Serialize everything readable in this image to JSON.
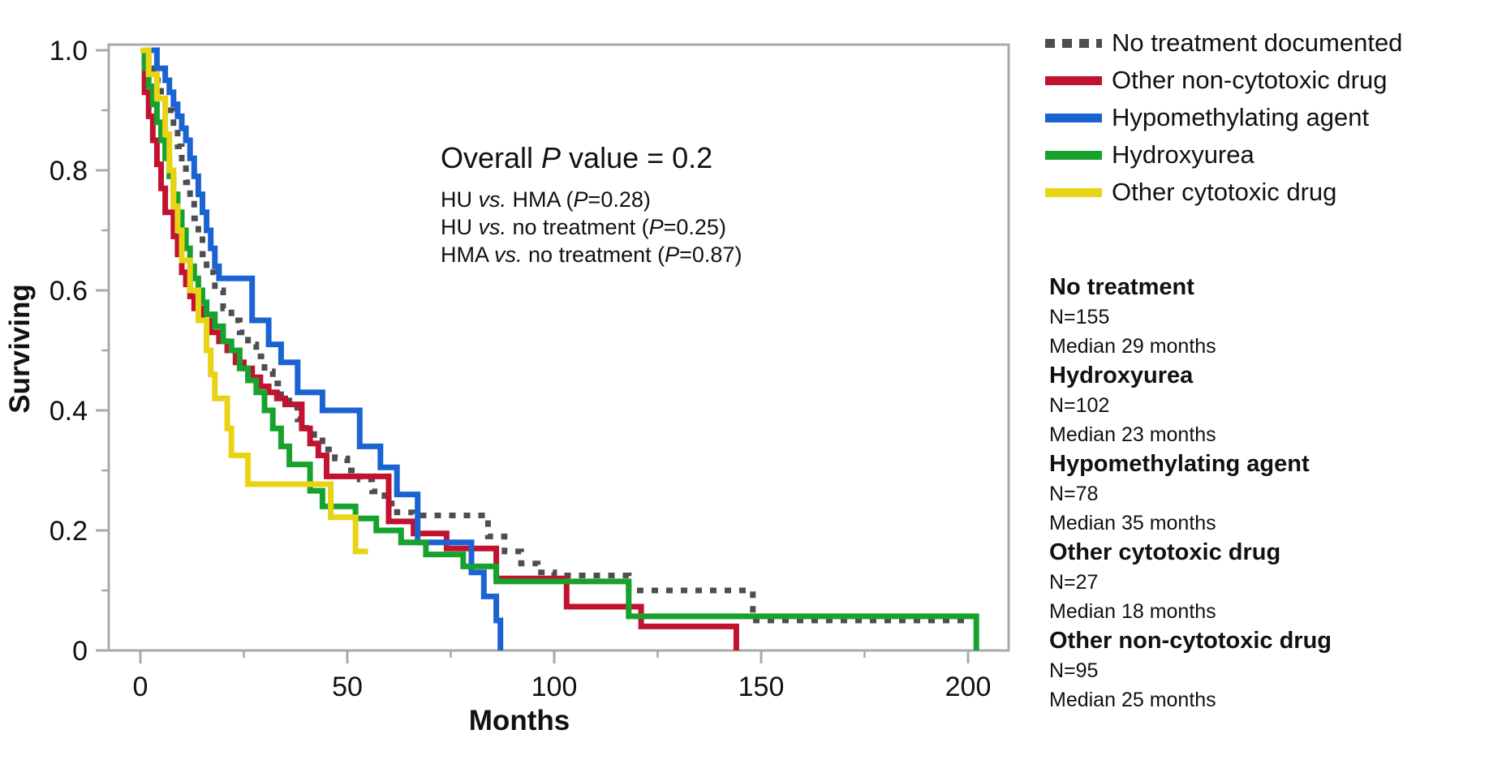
{
  "chart_data": {
    "type": "line",
    "subtype": "kaplan-meier-step",
    "xlabel": "Months",
    "ylabel": "Surviving",
    "x_axis": {
      "major_ticks": [
        0,
        50,
        100,
        150,
        200
      ],
      "major_labels": [
        "0",
        "50",
        "100",
        "150",
        "200"
      ],
      "minor_ticks": [
        25,
        75,
        125,
        175
      ],
      "range": [
        0,
        210
      ]
    },
    "y_axis": {
      "major_ticks": [
        0,
        0.2,
        0.4,
        0.6,
        0.8,
        1.0
      ],
      "major_labels": [
        "0",
        "0.2",
        "0.4",
        "0.6",
        "0.8",
        "1.0"
      ],
      "minor_ticks": [
        0.1,
        0.3,
        0.5,
        0.7,
        0.9
      ],
      "range": [
        0,
        1.0
      ]
    },
    "annotation": {
      "title_parts": [
        {
          "t": "Overall ",
          "i": false
        },
        {
          "t": "P",
          "i": true
        },
        {
          "t": " value = 0.2",
          "i": false
        }
      ],
      "lines": [
        [
          {
            "t": "HU ",
            "i": false
          },
          {
            "t": "vs.",
            "i": true
          },
          {
            "t": " HMA (",
            "i": false
          },
          {
            "t": "P",
            "i": true
          },
          {
            "t": "=0.28)",
            "i": false
          }
        ],
        [
          {
            "t": "HU ",
            "i": false
          },
          {
            "t": "vs.",
            "i": true
          },
          {
            "t": " no treatment (",
            "i": false
          },
          {
            "t": "P",
            "i": true
          },
          {
            "t": "=0.25)",
            "i": false
          }
        ],
        [
          {
            "t": "HMA ",
            "i": false
          },
          {
            "t": "vs.",
            "i": true
          },
          {
            "t": " no treatment (",
            "i": false
          },
          {
            "t": "P",
            "i": true
          },
          {
            "t": "=0.87)",
            "i": false
          }
        ]
      ]
    },
    "series": [
      {
        "name": "No treatment documented",
        "color": "#4e4e50",
        "dashed": true,
        "points": [
          [
            0,
            1.0
          ],
          [
            2,
            0.97
          ],
          [
            3,
            0.95
          ],
          [
            5,
            0.92
          ],
          [
            6,
            0.9
          ],
          [
            8,
            0.87
          ],
          [
            9,
            0.84
          ],
          [
            10,
            0.81
          ],
          [
            11,
            0.78
          ],
          [
            12,
            0.75
          ],
          [
            13,
            0.72
          ],
          [
            14,
            0.69
          ],
          [
            15,
            0.66
          ],
          [
            16,
            0.63
          ],
          [
            18,
            0.6
          ],
          [
            20,
            0.57
          ],
          [
            22,
            0.55
          ],
          [
            24,
            0.53
          ],
          [
            26,
            0.51
          ],
          [
            28,
            0.49
          ],
          [
            30,
            0.465
          ],
          [
            32,
            0.445
          ],
          [
            34,
            0.425
          ],
          [
            36,
            0.405
          ],
          [
            38,
            0.385
          ],
          [
            40,
            0.37
          ],
          [
            42,
            0.35
          ],
          [
            44,
            0.335
          ],
          [
            47,
            0.32
          ],
          [
            50,
            0.3
          ],
          [
            53,
            0.285
          ],
          [
            56,
            0.265
          ],
          [
            59,
            0.245
          ],
          [
            62,
            0.23
          ],
          [
            66,
            0.225
          ],
          [
            84,
            0.19
          ],
          [
            88,
            0.165
          ],
          [
            92,
            0.145
          ],
          [
            96,
            0.13
          ],
          [
            100,
            0.125
          ],
          [
            118,
            0.1
          ],
          [
            148,
            0.05
          ],
          [
            201,
            0.05
          ]
        ]
      },
      {
        "name": "Other non-cytotoxic drug",
        "color": "#c1122f",
        "dashed": false,
        "points": [
          [
            0,
            1.0
          ],
          [
            1,
            0.93
          ],
          [
            2,
            0.89
          ],
          [
            3,
            0.85
          ],
          [
            4,
            0.81
          ],
          [
            5,
            0.77
          ],
          [
            6,
            0.73
          ],
          [
            8,
            0.69
          ],
          [
            9,
            0.66
          ],
          [
            10,
            0.63
          ],
          [
            11,
            0.61
          ],
          [
            12,
            0.59
          ],
          [
            13,
            0.57
          ],
          [
            15,
            0.55
          ],
          [
            17,
            0.53
          ],
          [
            19,
            0.515
          ],
          [
            21,
            0.5
          ],
          [
            23,
            0.48
          ],
          [
            25,
            0.47
          ],
          [
            27,
            0.455
          ],
          [
            29,
            0.44
          ],
          [
            31,
            0.43
          ],
          [
            33,
            0.42
          ],
          [
            35,
            0.41
          ],
          [
            39,
            0.37
          ],
          [
            41,
            0.345
          ],
          [
            43,
            0.325
          ],
          [
            45,
            0.29
          ],
          [
            60,
            0.215
          ],
          [
            66,
            0.195
          ],
          [
            74,
            0.17
          ],
          [
            86,
            0.12
          ],
          [
            103,
            0.073
          ],
          [
            121,
            0.04
          ],
          [
            143,
            0.04
          ],
          [
            144,
            0
          ]
        ]
      },
      {
        "name": "Hypomethylating agent",
        "color": "#1c63d2",
        "dashed": false,
        "points": [
          [
            0,
            1.0
          ],
          [
            4,
            0.97
          ],
          [
            6,
            0.95
          ],
          [
            7,
            0.93
          ],
          [
            8,
            0.91
          ],
          [
            9,
            0.89
          ],
          [
            10,
            0.87
          ],
          [
            11,
            0.85
          ],
          [
            12,
            0.82
          ],
          [
            13,
            0.79
          ],
          [
            14,
            0.76
          ],
          [
            15,
            0.73
          ],
          [
            16,
            0.7
          ],
          [
            17,
            0.67
          ],
          [
            18,
            0.64
          ],
          [
            19,
            0.62
          ],
          [
            27,
            0.55
          ],
          [
            31,
            0.51
          ],
          [
            34,
            0.48
          ],
          [
            38,
            0.43
          ],
          [
            44,
            0.4
          ],
          [
            53,
            0.34
          ],
          [
            58,
            0.305
          ],
          [
            62,
            0.26
          ],
          [
            67,
            0.18
          ],
          [
            80,
            0.13
          ],
          [
            83,
            0.09
          ],
          [
            86,
            0.05
          ],
          [
            87,
            0
          ]
        ]
      },
      {
        "name": "Hydroxyurea",
        "color": "#16a22c",
        "dashed": false,
        "points": [
          [
            0,
            1.0
          ],
          [
            1,
            0.97
          ],
          [
            2,
            0.94
          ],
          [
            3,
            0.91
          ],
          [
            4,
            0.88
          ],
          [
            5,
            0.85
          ],
          [
            6,
            0.82
          ],
          [
            7,
            0.79
          ],
          [
            8,
            0.76
          ],
          [
            9,
            0.73
          ],
          [
            10,
            0.7
          ],
          [
            11,
            0.67
          ],
          [
            12,
            0.64
          ],
          [
            13,
            0.62
          ],
          [
            14,
            0.6
          ],
          [
            15,
            0.58
          ],
          [
            16,
            0.56
          ],
          [
            18,
            0.54
          ],
          [
            20,
            0.515
          ],
          [
            22,
            0.5
          ],
          [
            24,
            0.47
          ],
          [
            26,
            0.45
          ],
          [
            28,
            0.43
          ],
          [
            30,
            0.4
          ],
          [
            32,
            0.37
          ],
          [
            34,
            0.34
          ],
          [
            36,
            0.31
          ],
          [
            41,
            0.266
          ],
          [
            44,
            0.24
          ],
          [
            52,
            0.22
          ],
          [
            57,
            0.2
          ],
          [
            63,
            0.18
          ],
          [
            69,
            0.16
          ],
          [
            78,
            0.14
          ],
          [
            86,
            0.115
          ],
          [
            118,
            0.057
          ],
          [
            202,
            0.057
          ],
          [
            202,
            0
          ]
        ]
      },
      {
        "name": "Other cytotoxic drug",
        "color": "#e8d414",
        "dashed": false,
        "points": [
          [
            0,
            1.0
          ],
          [
            2,
            0.96
          ],
          [
            4,
            0.92
          ],
          [
            6,
            0.86
          ],
          [
            7,
            0.8
          ],
          [
            8,
            0.74
          ],
          [
            9,
            0.7
          ],
          [
            10,
            0.65
          ],
          [
            12,
            0.6
          ],
          [
            14,
            0.55
          ],
          [
            16,
            0.5
          ],
          [
            17,
            0.46
          ],
          [
            18,
            0.42
          ],
          [
            21,
            0.37
          ],
          [
            22,
            0.325
          ],
          [
            26,
            0.277
          ],
          [
            46,
            0.222
          ],
          [
            52,
            0.165
          ],
          [
            55,
            0.165
          ]
        ]
      }
    ],
    "frame_color": "#a9a9a9",
    "text_color": "#111111"
  },
  "legend": {
    "items": [
      {
        "label": "No treatment documented",
        "color": "#4e4e50",
        "dashed": true
      },
      {
        "label": "Other non-cytotoxic drug",
        "color": "#c1122f",
        "dashed": false
      },
      {
        "label": "Hypomethylating agent",
        "color": "#1c63d2",
        "dashed": false
      },
      {
        "label": "Hydroxyurea",
        "color": "#16a22c",
        "dashed": false
      },
      {
        "label": "Other cytotoxic drug",
        "color": "#e8d414",
        "dashed": false
      }
    ]
  },
  "stats": {
    "groups": [
      {
        "name": "No treatment",
        "n": "N=155",
        "median": "Median 29 months"
      },
      {
        "name": "Hydroxyurea",
        "n": "N=102",
        "median": "Median 23 months"
      },
      {
        "name": "Hypomethylating agent",
        "n": "N=78",
        "median": "Median 35 months"
      },
      {
        "name": "Other cytotoxic drug",
        "n": "N=27",
        "median": "Median 18 months"
      },
      {
        "name": "Other non-cytotoxic drug",
        "n": "N=95",
        "median": "Median 25 months"
      }
    ]
  }
}
